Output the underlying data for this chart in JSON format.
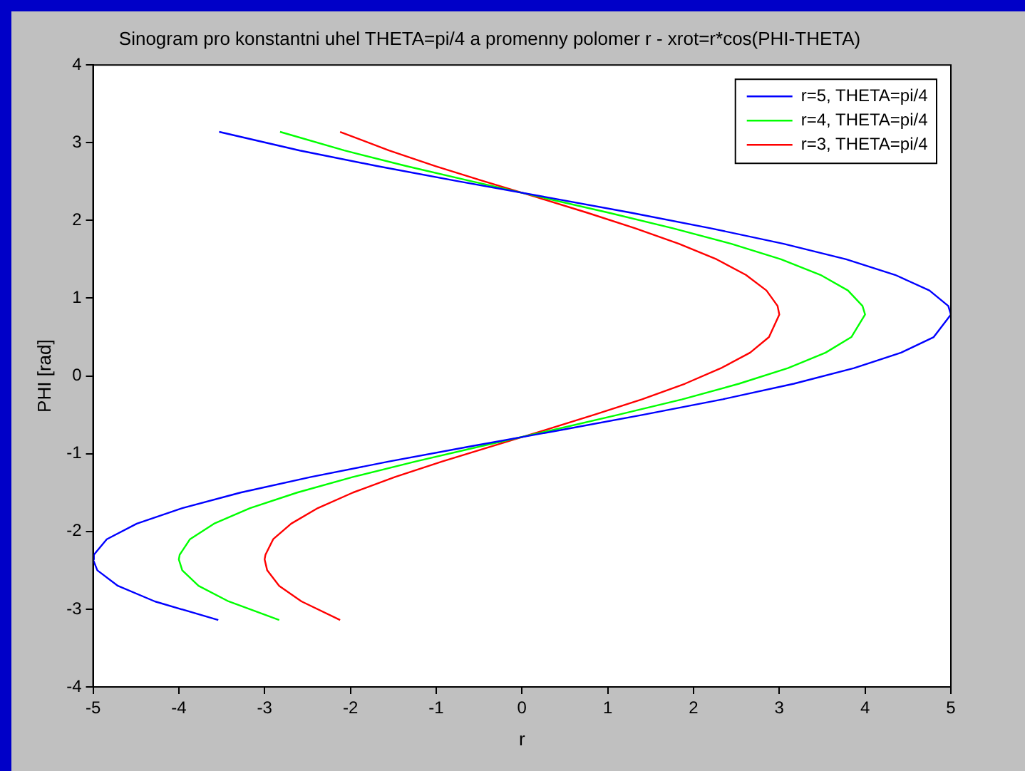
{
  "chart_data": {
    "type": "line",
    "title": "Sinogram pro konstantni uhel THETA=pi/4 a promenny polomer r - xrot=r*cos(PHI-THETA)",
    "xlabel": "r",
    "ylabel": "PHI [rad]",
    "xlim": [
      -5,
      5
    ],
    "xticks": [
      -5,
      -4,
      -3,
      -2,
      -1,
      0,
      1,
      2,
      3,
      4,
      5
    ],
    "ylim": [
      -4,
      4
    ],
    "yticks": [
      -4,
      -3,
      -2,
      -1,
      0,
      1,
      2,
      3,
      4
    ],
    "grid": false,
    "legend": "top right",
    "marker": "none",
    "line_style": "solid",
    "series": [
      {
        "name": "r=5, THETA=pi/4",
        "color": "#0000ff",
        "x": [
          -3.54,
          -4.28,
          -4.71,
          -4.95,
          -5,
          -4.99,
          -4.84,
          -4.49,
          -3.96,
          -3.28,
          -2.46,
          -1.55,
          -0.57,
          0.43,
          1.41,
          2.34,
          3.17,
          3.87,
          4.42,
          4.8,
          5,
          4.97,
          4.75,
          4.35,
          3.78,
          3.05,
          2.2,
          1.27,
          0.28,
          -0.72,
          -1.69,
          -2.59,
          -3.53
        ],
        "values": [
          -3.14,
          -2.9,
          -2.7,
          -2.5,
          -2.36,
          -2.3,
          -2.1,
          -1.9,
          -1.7,
          -1.5,
          -1.3,
          -1.1,
          -0.9,
          -0.7,
          -0.5,
          -0.3,
          -0.1,
          0.1,
          0.3,
          0.5,
          0.79,
          0.9,
          1.1,
          1.3,
          1.5,
          1.7,
          1.9,
          2.1,
          2.3,
          2.5,
          2.7,
          2.9,
          3.14
        ]
      },
      {
        "name": "r=4, THETA=pi/4",
        "color": "#00ff00",
        "x": [
          -2.83,
          -3.42,
          -3.77,
          -3.96,
          -4,
          -3.99,
          -3.87,
          -3.59,
          -3.17,
          -2.62,
          -1.97,
          -1.24,
          -0.46,
          0.34,
          1.12,
          1.87,
          2.53,
          3.1,
          3.54,
          3.84,
          4,
          3.97,
          3.8,
          3.48,
          3.02,
          2.44,
          1.76,
          1.01,
          0.22,
          -0.57,
          -1.35,
          -2.07,
          -2.82
        ],
        "values": [
          -3.14,
          -2.9,
          -2.7,
          -2.5,
          -2.36,
          -2.3,
          -2.1,
          -1.9,
          -1.7,
          -1.5,
          -1.3,
          -1.1,
          -0.9,
          -0.7,
          -0.5,
          -0.3,
          -0.1,
          0.1,
          0.3,
          0.5,
          0.79,
          0.9,
          1.1,
          1.3,
          1.5,
          1.7,
          1.9,
          2.1,
          2.3,
          2.5,
          2.7,
          2.9,
          3.14
        ]
      },
      {
        "name": "r=3, THETA=pi/4",
        "color": "#ff0000",
        "x": [
          -2.12,
          -2.57,
          -2.83,
          -2.97,
          -3,
          -2.99,
          -2.9,
          -2.69,
          -2.38,
          -1.97,
          -1.48,
          -0.93,
          -0.34,
          0.26,
          0.84,
          1.4,
          1.9,
          2.32,
          2.66,
          2.88,
          3,
          2.98,
          2.85,
          2.61,
          2.27,
          1.83,
          1.32,
          0.76,
          0.17,
          -0.43,
          -1.01,
          -1.55,
          -2.12
        ],
        "values": [
          -3.14,
          -2.9,
          -2.7,
          -2.5,
          -2.36,
          -2.3,
          -2.1,
          -1.9,
          -1.7,
          -1.5,
          -1.3,
          -1.1,
          -0.9,
          -0.7,
          -0.5,
          -0.3,
          -0.1,
          0.1,
          0.3,
          0.5,
          0.79,
          0.9,
          1.1,
          1.3,
          1.5,
          1.7,
          1.9,
          2.1,
          2.3,
          2.5,
          2.7,
          2.9,
          3.14
        ]
      }
    ]
  }
}
